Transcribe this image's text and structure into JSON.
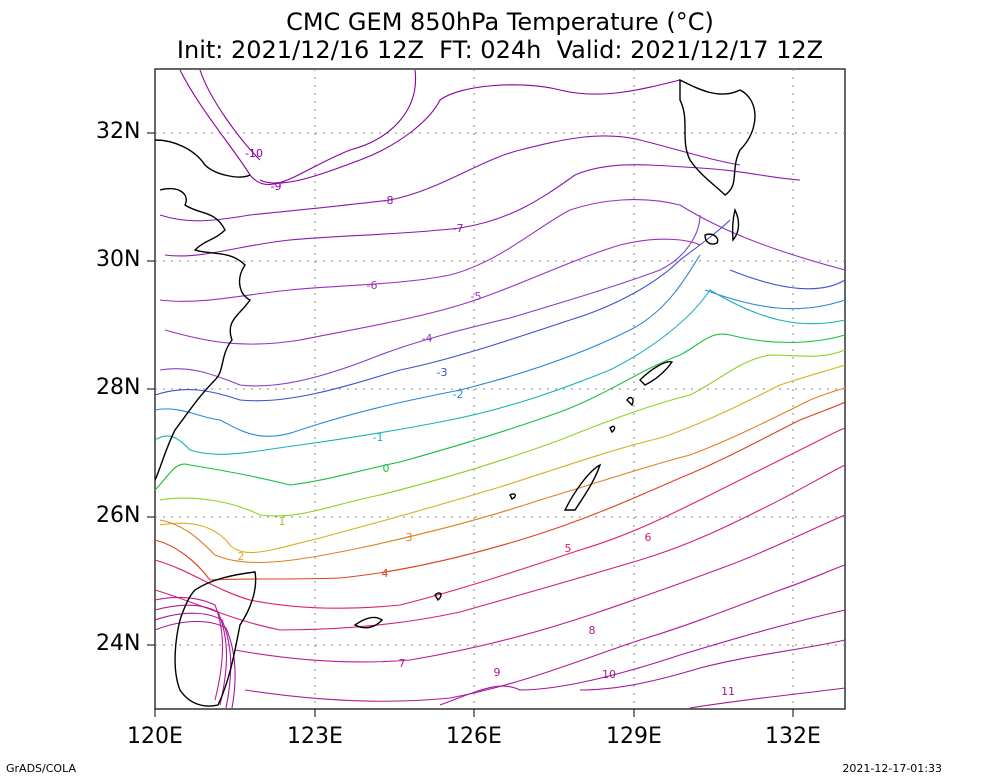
{
  "title": {
    "line1": "CMC GEM 850hPa Temperature (°C)",
    "line2": "Init: 2021/12/16 12Z  FT: 024h  Valid: 2021/12/17 12Z"
  },
  "axes": {
    "lat_labels": [
      "32N",
      "30N",
      "28N",
      "26N",
      "24N"
    ],
    "lon_labels": [
      "120E",
      "123E",
      "126E",
      "129E",
      "132E"
    ],
    "lon_range": [
      120,
      133
    ],
    "lat_range": [
      23,
      33
    ]
  },
  "footer": {
    "left": "GrADS/COLA",
    "right": "2021-12-17-01:33"
  },
  "contours": [
    {
      "value": "-10",
      "color": "#8b00a0",
      "label_x": "121.8E",
      "label_y": "31.8N"
    },
    {
      "value": "-9",
      "color": "#8b00a0",
      "label_x": "121.7E",
      "label_y": "31.2N"
    },
    {
      "value": "-8",
      "color": "#8c17b0",
      "label_x": "124.4E",
      "label_y": "30.9N"
    },
    {
      "value": "-7",
      "color": "#8c17b0",
      "label_x": "125.7E",
      "label_y": "30.5N"
    },
    {
      "value": "-6",
      "color": "#9a2fbf",
      "label_x": "123.8E",
      "label_y": "29.6N"
    },
    {
      "value": "-5",
      "color": "#9a2fbf",
      "label_x": "126.0E",
      "label_y": "29.4N"
    },
    {
      "value": "-4",
      "color": "#8a3cc0",
      "label_x": "125.0E",
      "label_y": "28.8N"
    },
    {
      "value": "-3",
      "color": "#3c4fd0",
      "label_x": "125.4E",
      "label_y": "28.3N"
    },
    {
      "value": "-2",
      "color": "#2a88d8",
      "label_x": "125.6E",
      "label_y": "27.9N"
    },
    {
      "value": "-1",
      "color": "#19b0b8",
      "label_x": "124.3E",
      "label_y": "27.3N"
    },
    {
      "value": "0",
      "color": "#19c040",
      "label_x": "124.3E",
      "label_y": "26.9N"
    },
    {
      "value": "1",
      "color": "#90d020",
      "label_x": "122.4E",
      "label_y": "26.0N"
    },
    {
      "value": "2",
      "color": "#d8b020",
      "label_x": "121.6E",
      "label_y": "25.4N"
    },
    {
      "value": "3",
      "color": "#e08020",
      "label_x": "124.7E",
      "label_y": "25.8N"
    },
    {
      "value": "4",
      "color": "#e04020",
      "label_x": "124.4E",
      "label_y": "25.1N"
    },
    {
      "value": "5",
      "color": "#e02060",
      "label_x": "127.8E",
      "label_y": "25.6N"
    },
    {
      "value": "6",
      "color": "#d0207a",
      "label_x": "129.1E",
      "label_y": "25.7N"
    },
    {
      "value": "7",
      "color": "#c01a90",
      "label_x": "124.5E",
      "label_y": "23.7N"
    },
    {
      "value": "8",
      "color": "#b01a98",
      "label_x": "128.5E",
      "label_y": "24.2N"
    },
    {
      "value": "9",
      "color": "#a5189a",
      "label_x": "127.0E",
      "label_y": "23.6N"
    },
    {
      "value": "10",
      "color": "#a01a98",
      "label_x": "128.7E",
      "label_y": "23.5N"
    },
    {
      "value": "11",
      "color": "#a01a98",
      "label_x": "131.5E",
      "label_y": "23.3N"
    }
  ]
}
